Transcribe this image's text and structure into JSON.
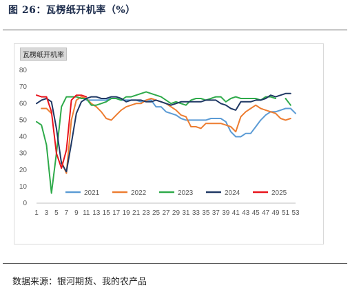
{
  "figure": {
    "title": "图 26：瓦楞纸开机率（%）",
    "source": "数据来源：银河期货、我的农产品"
  },
  "chart_data": {
    "type": "line",
    "title": "瓦楞纸开机率",
    "xlabel": "",
    "ylabel": "",
    "x": [
      1,
      2,
      3,
      4,
      5,
      6,
      7,
      8,
      9,
      10,
      11,
      12,
      13,
      14,
      15,
      16,
      17,
      18,
      19,
      20,
      21,
      22,
      23,
      24,
      25,
      26,
      27,
      28,
      29,
      30,
      31,
      32,
      33,
      34,
      35,
      36,
      37,
      38,
      39,
      40,
      41,
      42,
      43,
      44,
      45,
      46,
      47,
      48,
      49,
      50,
      51,
      52,
      53
    ],
    "x_tick_labels": [
      "1",
      "3",
      "5",
      "7",
      "9",
      "11",
      "13",
      "15",
      "17",
      "19",
      "21",
      "23",
      "25",
      "27",
      "29",
      "31",
      "33",
      "35",
      "37",
      "39",
      "41",
      "43",
      "45",
      "47",
      "49",
      "51",
      "53"
    ],
    "ylim": [
      0,
      80
    ],
    "y_ticks": [
      0,
      10,
      20,
      30,
      40,
      50,
      60,
      70,
      80
    ],
    "grid": false,
    "legend_position": "bottom",
    "series": [
      {
        "name": "2021",
        "color": "#5b9bd5",
        "values": [
          null,
          null,
          null,
          null,
          null,
          null,
          null,
          null,
          null,
          null,
          62,
          62,
          62,
          62,
          62,
          63,
          63,
          62,
          62,
          62,
          62,
          61,
          62,
          62,
          58,
          58,
          55,
          54,
          53,
          51,
          50,
          50,
          50,
          50,
          50,
          51,
          51,
          51,
          49,
          43,
          40,
          40,
          42,
          42,
          46,
          50,
          53,
          55,
          55,
          56,
          57,
          57,
          54
        ]
      },
      {
        "name": "2022",
        "color": "#ed7d31",
        "values": [
          null,
          57,
          57,
          54,
          null,
          25,
          18,
          50,
          62,
          64,
          63,
          60,
          58,
          55,
          51,
          50,
          53,
          56,
          58,
          59,
          60,
          60,
          62,
          63,
          62,
          61,
          60,
          58,
          56,
          53,
          52,
          46,
          46,
          45,
          48,
          48,
          48,
          48,
          47,
          46,
          43,
          52,
          55,
          57,
          59,
          57,
          56,
          55,
          54,
          51,
          50,
          51,
          null
        ]
      },
      {
        "name": "2023",
        "color": "#2eaa4a",
        "values": [
          49,
          47,
          35,
          6,
          30,
          58,
          64,
          64,
          64,
          63,
          63,
          59,
          59,
          60,
          61,
          63,
          63,
          62,
          64,
          64,
          65,
          66,
          67,
          66,
          65,
          64,
          62,
          60,
          61,
          60,
          59,
          62,
          63,
          63,
          62,
          63,
          64,
          64,
          61,
          63,
          64,
          63,
          63,
          63,
          63,
          62,
          64,
          64,
          63,
          null,
          63,
          59,
          null
        ]
      },
      {
        "name": "2024",
        "color": "#1f3864",
        "values": [
          60,
          62,
          63,
          61,
          45,
          24,
          19,
          36,
          54,
          61,
          63,
          64,
          64,
          63,
          63,
          64,
          64,
          63,
          61,
          62,
          62,
          62,
          61,
          61,
          62,
          61,
          60,
          59,
          60,
          61,
          61,
          61,
          61,
          61,
          62,
          62,
          62,
          60,
          59,
          57,
          56,
          61,
          61,
          61,
          62,
          62,
          63,
          65,
          64,
          65,
          66,
          66,
          null
        ]
      },
      {
        "name": "2025",
        "color": "#e8141c",
        "values": [
          65,
          64,
          64,
          55,
          30,
          21,
          32,
          62,
          65,
          65,
          64,
          null,
          null,
          null,
          null,
          null,
          null,
          null,
          null,
          null,
          null,
          null,
          null,
          null,
          null,
          null,
          null,
          null,
          null,
          null,
          null,
          null,
          null,
          null,
          null,
          null,
          null,
          null,
          null,
          null,
          null,
          null,
          null,
          null,
          null,
          null,
          null,
          null,
          null,
          null,
          null,
          null,
          null
        ]
      }
    ]
  }
}
